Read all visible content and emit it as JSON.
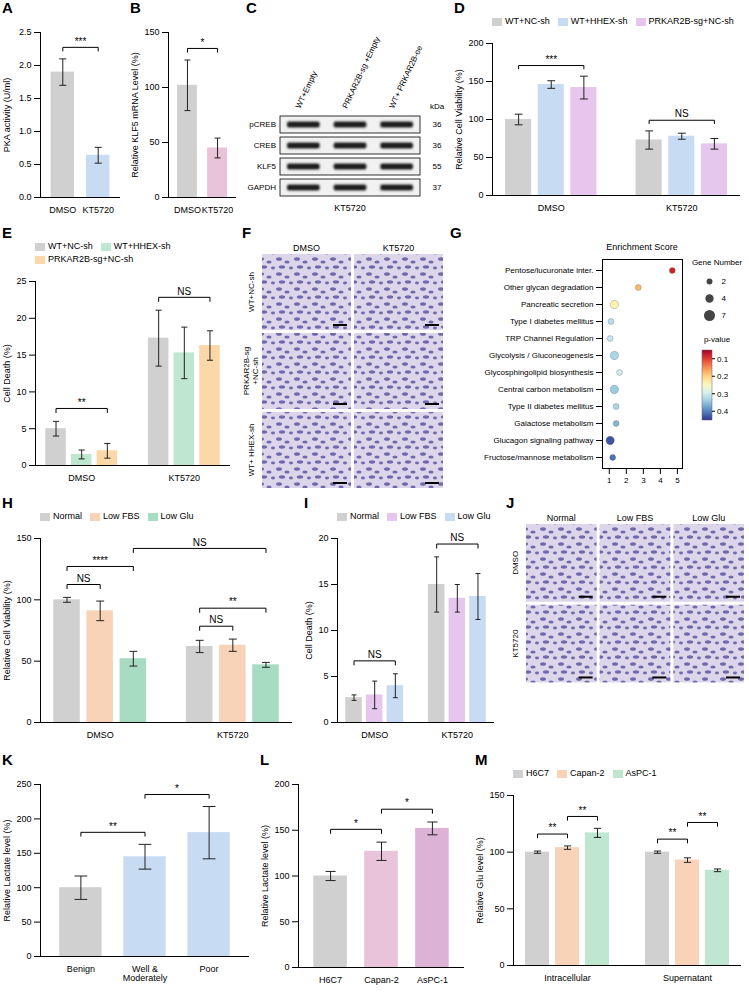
{
  "chart_data": [
    {
      "panel": "A",
      "type": "bar",
      "ylabel": "PKA activity (U/ml)",
      "categories": [
        "DMSO",
        "KT5720"
      ],
      "values": [
        1.9,
        0.64
      ],
      "errors": [
        0.2,
        0.12
      ],
      "colors": [
        "#d0d0d0",
        "#c7dbf2"
      ],
      "ylim": [
        0,
        2.5
      ],
      "yticks": [
        {
          "value": 0,
          "label": "0.0"
        },
        0.5,
        {
          "value": 1,
          "label": "1.0"
        },
        1.5,
        {
          "value": 2,
          "label": "2.0"
        },
        2.5
      ],
      "annotations": [
        {
          "text": "***",
          "from": "DMSO",
          "to": "KT5720"
        }
      ]
    },
    {
      "panel": "B",
      "type": "bar",
      "ylabel": "Relative KLF5 mRNA Level (%)",
      "categories": [
        "DMSO",
        "KT5720"
      ],
      "values": [
        102,
        45
      ],
      "errors": [
        23,
        9
      ],
      "colors": [
        "#d0d0d0",
        "#e8c3da"
      ],
      "ylim": [
        0,
        150
      ],
      "yticks": [
        0,
        50,
        100,
        150
      ],
      "annotations": [
        {
          "text": "*",
          "from": "DMSO",
          "to": "KT5720"
        }
      ]
    },
    {
      "panel": "D",
      "type": "bar",
      "ylabel": "Relative Cell Viability (%)",
      "categories": [
        "DMSO",
        "KT5720"
      ],
      "series": [
        {
          "name": "WT+NC-sh",
          "color": "#d0d0d0",
          "values": [
            100,
            73
          ],
          "errors": [
            7,
            12
          ]
        },
        {
          "name": "WT+HHEX-sh",
          "color": "#c7dbf2",
          "values": [
            146,
            78
          ],
          "errors": [
            5,
            4
          ]
        },
        {
          "name": "PRKAR2B-sg+NC-sh",
          "color": "#e6c6ec",
          "values": [
            142,
            68
          ],
          "errors": [
            15,
            7
          ]
        }
      ],
      "ylim": [
        0,
        200
      ],
      "yticks": [
        0,
        50,
        100,
        150,
        200
      ],
      "legend": "top",
      "annotations": [
        {
          "text": "***",
          "from": [
            "DMSO",
            "WT+NC-sh"
          ],
          "to": [
            "DMSO",
            "PRKAR2B-sg+NC-sh"
          ]
        },
        {
          "text": "NS",
          "from": [
            "KT5720",
            "WT+NC-sh"
          ],
          "to": [
            "KT5720",
            "PRKAR2B-sg+NC-sh"
          ]
        }
      ]
    },
    {
      "panel": "E",
      "type": "bar",
      "ylabel": "Cell Death (%)",
      "categories": [
        "DMSO",
        "KT5720"
      ],
      "series": [
        {
          "name": "WT+NC-sh",
          "color": "#d0d0d0",
          "values": [
            5,
            17.3
          ],
          "errors": [
            1,
            3.8
          ]
        },
        {
          "name": "WT+HHEX-sh",
          "color": "#bfe6cf",
          "values": [
            1.5,
            15.3
          ],
          "errors": [
            0.6,
            3.5
          ]
        },
        {
          "name": "PRKAR2B-sg+NC-sh",
          "color": "#fcd8a8",
          "values": [
            2,
            16.3
          ],
          "errors": [
            1,
            2
          ]
        }
      ],
      "ylim": [
        0,
        25
      ],
      "yticks": [
        0,
        5,
        10,
        15,
        20,
        25
      ],
      "legend": "top",
      "annotations": [
        {
          "text": "**",
          "from": [
            "DMSO",
            "WT+NC-sh"
          ],
          "to": [
            "DMSO",
            "PRKAR2B-sg+NC-sh"
          ]
        },
        {
          "text": "NS",
          "from": [
            "KT5720",
            "WT+NC-sh"
          ],
          "to": [
            "KT5720",
            "PRKAR2B-sg+NC-sh"
          ]
        }
      ]
    },
    {
      "panel": "G",
      "type": "scatter",
      "title": "Enrichment Score",
      "categories": [
        "Pentose/lucuronate inter.",
        "Other glycan degradation",
        "Pancreatic secretion",
        "Type I diabetes mellitus",
        "TRP Channel Regulation",
        "Glycolysis / Gluconeogenesis",
        "Glycosphingolipid biosynthesis",
        "Central carbon metabolism",
        "Type II diabetes mellitus",
        "Galactose metabolism",
        "Glucagon signaling pathway",
        "Fructose/mannose metabolism"
      ],
      "values": [
        4.7,
        2.7,
        1.3,
        1.1,
        1.05,
        1.3,
        1.6,
        1.3,
        1.4,
        1.4,
        1.05,
        1.2
      ],
      "sizes": [
        2,
        2,
        4,
        2,
        2,
        4,
        2,
        4,
        2,
        2,
        4,
        2
      ],
      "p_values": [
        0.08,
        0.18,
        0.24,
        0.32,
        0.31,
        0.33,
        0.3,
        0.34,
        0.33,
        0.36,
        0.43,
        0.41
      ],
      "xlim": [
        0.6,
        5.3
      ],
      "xticks": [
        1,
        2,
        3,
        4,
        5
      ],
      "size_legend": {
        "label": "Gene Number",
        "values": [
          2,
          4,
          7
        ]
      },
      "colorbar": {
        "label": "p-value",
        "lim": [
          0.05,
          0.45
        ],
        "ticks": [
          0.1,
          0.2,
          0.3,
          0.4
        ]
      }
    },
    {
      "panel": "H",
      "type": "bar",
      "ylabel": "Relative Cell Viability (%)",
      "categories": [
        "DMSO",
        "KT5720"
      ],
      "series": [
        {
          "name": "Normal",
          "color": "#d0d0d0",
          "values": [
            100,
            62
          ],
          "errors": [
            2,
            5
          ]
        },
        {
          "name": "Low FBS",
          "color": "#f9d3b8",
          "values": [
            91,
            63
          ],
          "errors": [
            8,
            5
          ]
        },
        {
          "name": "Low Glu",
          "color": "#a8dcc2",
          "values": [
            52,
            47
          ],
          "errors": [
            6,
            2
          ]
        }
      ],
      "ylim": [
        0,
        150
      ],
      "yticks": [
        0,
        50,
        100,
        150
      ],
      "legend": "top",
      "annotations": [
        {
          "text": "NS",
          "from": [
            "DMSO",
            "Normal"
          ],
          "to": [
            "DMSO",
            "Low FBS"
          ]
        },
        {
          "text": "****",
          "from": [
            "DMSO",
            "Normal"
          ],
          "to": [
            "DMSO",
            "Low Glu"
          ]
        },
        {
          "text": "NS",
          "from": [
            "KT5720",
            "Normal"
          ],
          "to": [
            "KT5720",
            "Low FBS"
          ]
        },
        {
          "text": "**",
          "from": [
            "KT5720",
            "Normal"
          ],
          "to": [
            "KT5720",
            "Low Glu"
          ]
        },
        {
          "text": "NS",
          "from": [
            "DMSO",
            "Low Glu"
          ],
          "to": [
            "KT5720",
            "Low Glu"
          ]
        }
      ]
    },
    {
      "panel": "I",
      "type": "bar",
      "ylabel": "Cell Death (%)",
      "categories": [
        "DMSO",
        "KT5720"
      ],
      "series": [
        {
          "name": "Normal",
          "color": "#d0d0d0",
          "values": [
            2.7,
            15
          ],
          "errors": [
            0.3,
            3
          ]
        },
        {
          "name": "Low FBS",
          "color": "#e6c6ec",
          "values": [
            3,
            13.5
          ],
          "errors": [
            1.5,
            1.5
          ]
        },
        {
          "name": "Low Glu",
          "color": "#c7dbf2",
          "values": [
            4,
            13.7
          ],
          "errors": [
            1.3,
            2.5
          ]
        }
      ],
      "ylim": [
        0,
        20
      ],
      "yticks": [
        0,
        5,
        10,
        15,
        20
      ],
      "legend": "top",
      "annotations": [
        {
          "text": "NS",
          "from": [
            "DMSO",
            "Normal"
          ],
          "to": [
            "DMSO",
            "Low Glu"
          ]
        },
        {
          "text": "NS",
          "from": [
            "KT5720",
            "Normal"
          ],
          "to": [
            "KT5720",
            "Low Glu"
          ]
        }
      ]
    },
    {
      "panel": "K",
      "type": "bar",
      "ylabel": "Relative Lactate level (%)",
      "categories": [
        "Benign",
        "Well & Moderately",
        "Poor"
      ],
      "values": [
        100,
        145,
        180
      ],
      "errors": [
        17,
        18,
        38
      ],
      "colors": [
        "#d0d0d0",
        "#c7dbf2",
        "#c7dbf2"
      ],
      "ylim": [
        0,
        250
      ],
      "yticks": [
        0,
        50,
        100,
        150,
        200,
        250
      ],
      "annotations": [
        {
          "text": "**",
          "from": "Benign",
          "to": "Well & Moderately"
        },
        {
          "text": "*",
          "from": "Well & Moderately",
          "to": "Poor"
        }
      ]
    },
    {
      "panel": "L",
      "type": "bar",
      "ylabel": "Relative Lactate level (%)",
      "categories": [
        "H6C7",
        "Capan-2",
        "AsPC-1"
      ],
      "values": [
        100,
        127,
        152
      ],
      "errors": [
        5,
        10,
        7
      ],
      "colors": [
        "#d0d0d0",
        "#e8c3da",
        "#dcb3d6"
      ],
      "ylim": [
        0,
        200
      ],
      "yticks": [
        0,
        50,
        100,
        150,
        200
      ],
      "annotations": [
        {
          "text": "*",
          "from": "H6C7",
          "to": "Capan-2"
        },
        {
          "text": "*",
          "from": "Capan-2",
          "to": "AsPC-1"
        }
      ]
    },
    {
      "panel": "M",
      "type": "bar",
      "ylabel": "Relative Glu level (%)",
      "categories": [
        "Intracellular",
        "Supernatant"
      ],
      "series": [
        {
          "name": "H6C7",
          "color": "#d0d0d0",
          "values": [
            100,
            100
          ],
          "errors": [
            1,
            1
          ]
        },
        {
          "name": "Capan-2",
          "color": "#f9d3b8",
          "values": [
            104,
            93
          ],
          "errors": [
            1.5,
            2
          ]
        },
        {
          "name": "AsPC-1",
          "color": "#bfe6cf",
          "values": [
            117,
            84
          ],
          "errors": [
            4,
            1.2
          ]
        }
      ],
      "ylim": [
        0,
        150
      ],
      "yticks": [
        0,
        50,
        100,
        150
      ],
      "legend": "top",
      "annotations": [
        {
          "text": "**",
          "from": [
            "Intracellular",
            "H6C7"
          ],
          "to": [
            "Intracellular",
            "Capan-2"
          ]
        },
        {
          "text": "**",
          "from": [
            "Intracellular",
            "Capan-2"
          ],
          "to": [
            "Intracellular",
            "AsPC-1"
          ]
        },
        {
          "text": "**",
          "from": [
            "Supernatant",
            "H6C7"
          ],
          "to": [
            "Supernatant",
            "Capan-2"
          ]
        },
        {
          "text": "**",
          "from": [
            "Supernatant",
            "Capan-2"
          ],
          "to": [
            "Supernatant",
            "AsPC-1"
          ]
        }
      ]
    }
  ],
  "blot": {
    "panel": "C",
    "columns": [
      "WT+Empty",
      "PRKAR2B-sg +Empty",
      "WT+ PRKAR2B-oe"
    ],
    "kda_label": "kDa",
    "rows": [
      {
        "label": "pCREB",
        "kda": 36
      },
      {
        "label": "CREB",
        "kda": 36
      },
      {
        "label": "KLF5",
        "kda": 55
      },
      {
        "label": "GAPDH",
        "kda": 37
      }
    ],
    "treatment": "KT5720"
  },
  "images": [
    {
      "panel": "F",
      "columns": [
        "DMSO",
        "KT5720"
      ],
      "rows": [
        "WT+NC-sh",
        "PRKAR2B-sg +NC-sh",
        "WT+ HHEX-sh"
      ]
    },
    {
      "panel": "J",
      "columns": [
        "Normal",
        "Low FBS",
        "Low Glu"
      ],
      "rows": [
        "DMSO",
        "KT5720"
      ]
    }
  ]
}
